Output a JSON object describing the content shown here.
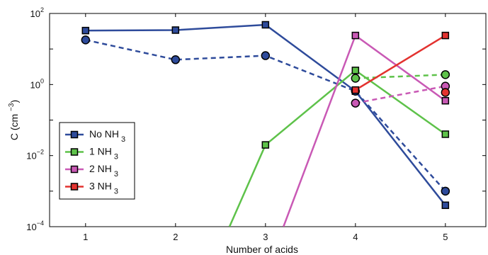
{
  "chart_data": {
    "type": "line",
    "title": "",
    "xlabel": "Number of acids",
    "ylabel": "C (cm −3)",
    "ylabel_main": "C  (cm",
    "ylabel_sup": "−3",
    "ylabel_close": ")",
    "x": [
      1,
      2,
      3,
      4,
      5
    ],
    "xlim": [
      0.6,
      5.45
    ],
    "ylim": [
      0.0001,
      100
    ],
    "yscale": "log",
    "xticks": [
      "1",
      "2",
      "3",
      "4",
      "5"
    ],
    "yticks": [
      {
        "value": 100,
        "base": "10",
        "exp": "2"
      },
      {
        "value": 1,
        "base": "10",
        "exp": "0"
      },
      {
        "value": 0.01,
        "base": "10",
        "exp": "−2"
      },
      {
        "value": 0.0001,
        "base": "10",
        "exp": "−4"
      }
    ],
    "grid": false,
    "legend_position": "bottom-left",
    "series": [
      {
        "name": "No NH",
        "subscript": "3",
        "color": "#2e4b9b",
        "style": "solid",
        "marker": "square",
        "values": [
          [
            1,
            33
          ],
          [
            2,
            34
          ],
          [
            3,
            48
          ],
          [
            4,
            0.65
          ],
          [
            5,
            0.0004
          ]
        ]
      },
      {
        "name": "",
        "color": "#2e4b9b",
        "style": "dashed",
        "marker": "circle",
        "values": [
          [
            1,
            18
          ],
          [
            2,
            5
          ],
          [
            3,
            6.5
          ],
          [
            4,
            0.65
          ],
          [
            5,
            0.001
          ]
        ]
      },
      {
        "name": "1 NH",
        "subscript": "3",
        "color": "#5ec24a",
        "style": "solid",
        "marker": "square",
        "values": [
          [
            2.6,
            0.0001
          ],
          [
            3,
            0.02
          ],
          [
            4,
            2.5
          ],
          [
            5,
            0.04
          ]
        ]
      },
      {
        "name": "",
        "color": "#5ec24a",
        "style": "dashed",
        "marker": "circle",
        "values": [
          [
            4,
            1.5
          ],
          [
            5,
            1.9
          ]
        ]
      },
      {
        "name": "2 NH",
        "subscript": "3",
        "color": "#c959b5",
        "style": "solid",
        "marker": "square",
        "values": [
          [
            3.2,
            0.0001
          ],
          [
            4,
            24
          ],
          [
            5,
            0.35
          ]
        ]
      },
      {
        "name": "",
        "color": "#c959b5",
        "style": "dashed",
        "marker": "circle",
        "values": [
          [
            4,
            0.3
          ],
          [
            5,
            0.9
          ]
        ]
      },
      {
        "name": "3 NH",
        "subscript": "3",
        "color": "#e3322f",
        "style": "solid",
        "marker": "square",
        "values": [
          [
            4,
            0.7
          ],
          [
            5,
            24
          ]
        ]
      },
      {
        "name": "",
        "color": "#e3322f",
        "style": "dashed",
        "marker": "circle",
        "values": [
          [
            5,
            0.6
          ]
        ]
      }
    ]
  }
}
